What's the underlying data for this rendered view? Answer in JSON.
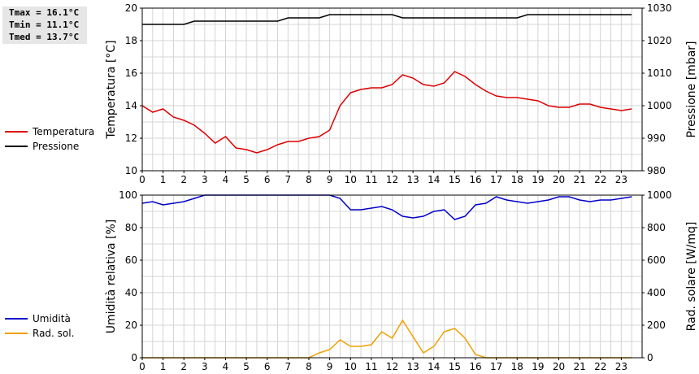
{
  "stats": {
    "tmax": "Tmax = 16.1°C",
    "tmin": "Tmin = 11.1°C",
    "tmed": "Tmed = 13.7°C"
  },
  "chart_data": [
    {
      "type": "line",
      "ylabel_left": "Temperatura [°C]",
      "ylabel_right": "Pressione [mbar]",
      "xlim": [
        0,
        24
      ],
      "x_ticks": [
        0,
        1,
        2,
        3,
        4,
        5,
        6,
        7,
        8,
        9,
        10,
        11,
        12,
        13,
        14,
        15,
        16,
        17,
        18,
        19,
        20,
        21,
        22,
        23
      ],
      "ylim_left": [
        10,
        20
      ],
      "yticks_left": [
        10,
        12,
        14,
        16,
        18,
        20
      ],
      "ylim_right": [
        980,
        1030
      ],
      "yticks_right": [
        980,
        990,
        1000,
        1010,
        1020,
        1030
      ],
      "grid": true,
      "legend": [
        {
          "name": "Temperatura",
          "color": "#dd0000"
        },
        {
          "name": "Pressione",
          "color": "#000000"
        }
      ],
      "series": [
        {
          "name": "Temperatura",
          "color": "#dd0000",
          "axis": "left",
          "x": [
            0,
            0.5,
            1,
            1.5,
            2,
            2.5,
            3,
            3.5,
            4,
            4.5,
            5,
            5.5,
            6,
            6.5,
            7,
            7.5,
            8,
            8.5,
            9,
            9.5,
            10,
            10.5,
            11,
            11.5,
            12,
            12.5,
            13,
            13.5,
            14,
            14.5,
            15,
            15.5,
            16,
            16.5,
            17,
            17.5,
            18,
            18.5,
            19,
            19.5,
            20,
            20.5,
            21,
            21.5,
            22,
            22.5,
            23,
            23.5
          ],
          "y": [
            14.0,
            13.6,
            13.8,
            13.3,
            13.1,
            12.8,
            12.3,
            11.7,
            12.1,
            11.4,
            11.3,
            11.1,
            11.3,
            11.6,
            11.8,
            11.8,
            12.0,
            12.1,
            12.5,
            14.0,
            14.8,
            15.0,
            15.1,
            15.1,
            15.3,
            15.9,
            15.7,
            15.3,
            15.2,
            15.4,
            16.1,
            15.8,
            15.3,
            14.9,
            14.6,
            14.5,
            14.5,
            14.4,
            14.3,
            14.0,
            13.9,
            13.9,
            14.1,
            14.1,
            13.9,
            13.8,
            13.7,
            13.8
          ]
        },
        {
          "name": "Pressione",
          "color": "#000000",
          "axis": "right",
          "x": [
            0,
            0.5,
            1,
            1.5,
            2,
            2.5,
            3,
            3.5,
            4,
            4.5,
            5,
            5.5,
            6,
            6.5,
            7,
            7.5,
            8,
            8.5,
            9,
            9.5,
            10,
            10.5,
            11,
            11.5,
            12,
            12.5,
            13,
            13.5,
            14,
            14.5,
            15,
            15.5,
            16,
            16.5,
            17,
            17.5,
            18,
            18.5,
            19,
            19.5,
            20,
            20.5,
            21,
            21.5,
            22,
            22.5,
            23,
            23.5
          ],
          "y": [
            1025,
            1025,
            1025,
            1025,
            1025,
            1026,
            1026,
            1026,
            1026,
            1026,
            1026,
            1026,
            1026,
            1026,
            1027,
            1027,
            1027,
            1027,
            1028,
            1028,
            1028,
            1028,
            1028,
            1028,
            1028,
            1027,
            1027,
            1027,
            1027,
            1027,
            1027,
            1027,
            1027,
            1027,
            1027,
            1027,
            1027,
            1028,
            1028,
            1028,
            1028,
            1028,
            1028,
            1028,
            1028,
            1028,
            1028,
            1028
          ]
        }
      ]
    },
    {
      "type": "line",
      "ylabel_left": "Umidità relativa [%]",
      "ylabel_right": "Rad. solare [W/mq]",
      "xlim": [
        0,
        24
      ],
      "x_ticks": [
        0,
        1,
        2,
        3,
        4,
        5,
        6,
        7,
        8,
        9,
        10,
        11,
        12,
        13,
        14,
        15,
        16,
        17,
        18,
        19,
        20,
        21,
        22,
        23
      ],
      "ylim_left": [
        0,
        100
      ],
      "yticks_left": [
        0,
        20,
        40,
        60,
        80,
        100
      ],
      "ylim_right": [
        0,
        1000
      ],
      "yticks_right": [
        0,
        200,
        400,
        600,
        800,
        1000
      ],
      "grid": true,
      "legend": [
        {
          "name": "Umidità",
          "color": "#0000cc"
        },
        {
          "name": "Rad. sol.",
          "color": "#f0a000"
        }
      ],
      "series": [
        {
          "name": "Umidità",
          "color": "#0000cc",
          "axis": "left",
          "x": [
            0,
            0.5,
            1,
            1.5,
            2,
            2.5,
            3,
            3.5,
            4,
            4.5,
            5,
            5.5,
            6,
            6.5,
            7,
            7.5,
            8,
            8.5,
            9,
            9.5,
            10,
            10.5,
            11,
            11.5,
            12,
            12.5,
            13,
            13.5,
            14,
            14.5,
            15,
            15.5,
            16,
            16.5,
            17,
            17.5,
            18,
            18.5,
            19,
            19.5,
            20,
            20.5,
            21,
            21.5,
            22,
            22.5,
            23,
            23.5
          ],
          "y": [
            95,
            96,
            94,
            95,
            96,
            98,
            100,
            100,
            100,
            100,
            100,
            100,
            100,
            100,
            100,
            100,
            100,
            100,
            100,
            98,
            91,
            91,
            92,
            93,
            91,
            87,
            86,
            87,
            90,
            91,
            85,
            87,
            94,
            95,
            99,
            97,
            96,
            95,
            96,
            97,
            99,
            99,
            97,
            96,
            97,
            97,
            98,
            99
          ]
        },
        {
          "name": "Rad. sol.",
          "color": "#f0a000",
          "axis": "right",
          "x": [
            0,
            0.5,
            1,
            1.5,
            2,
            2.5,
            3,
            3.5,
            4,
            4.5,
            5,
            5.5,
            6,
            6.5,
            7,
            7.5,
            8,
            8.5,
            9,
            9.5,
            10,
            10.5,
            11,
            11.5,
            12,
            12.5,
            13,
            13.5,
            14,
            14.5,
            15,
            15.5,
            16,
            16.5,
            17,
            17.5,
            18,
            18.5,
            19,
            19.5,
            20,
            20.5,
            21,
            21.5,
            22,
            22.5,
            23,
            23.5
          ],
          "y": [
            0,
            0,
            0,
            0,
            0,
            0,
            0,
            0,
            0,
            0,
            0,
            0,
            0,
            0,
            0,
            0,
            0,
            30,
            50,
            110,
            70,
            70,
            80,
            160,
            120,
            230,
            130,
            30,
            70,
            160,
            180,
            120,
            20,
            0,
            0,
            0,
            0,
            0,
            0,
            0,
            0,
            0,
            0,
            0,
            0,
            0,
            0,
            0
          ]
        }
      ]
    }
  ]
}
